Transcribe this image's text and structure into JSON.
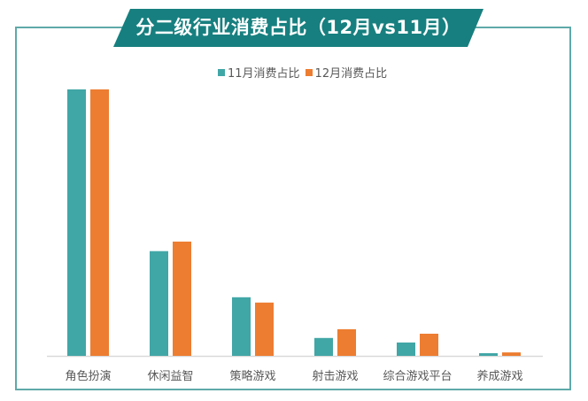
{
  "chart_data": {
    "type": "bar",
    "title": "分二级行业消费占比（12月vs11月）",
    "categories": [
      "角色扮演",
      "休闲益智",
      "策略游戏",
      "射击游戏",
      "综合游戏平台",
      "养成游戏"
    ],
    "series": [
      {
        "name": "11月消费占比",
        "color": "#41a6a6",
        "values": [
          100,
          39.3,
          22.0,
          6.7,
          5.0,
          1.0
        ]
      },
      {
        "name": "12月消费占比",
        "color": "#ed7d31",
        "values": [
          100,
          42.9,
          20.0,
          10.0,
          8.3,
          1.3
        ]
      }
    ],
    "xlabel": "",
    "ylabel": "",
    "ylim": [
      0,
      100
    ],
    "grid": false,
    "legend_position": "top",
    "value_note": "relative heights (largest bar = 100); no axis tick labels shown"
  },
  "banner": {
    "title": "分二级行业消费占比（12月vs11月）",
    "color": "#177f7f"
  },
  "legend": {
    "items": [
      {
        "label": "11月消费占比",
        "color": "#41a6a6"
      },
      {
        "label": "12月消费占比",
        "color": "#ed7d31"
      }
    ]
  }
}
